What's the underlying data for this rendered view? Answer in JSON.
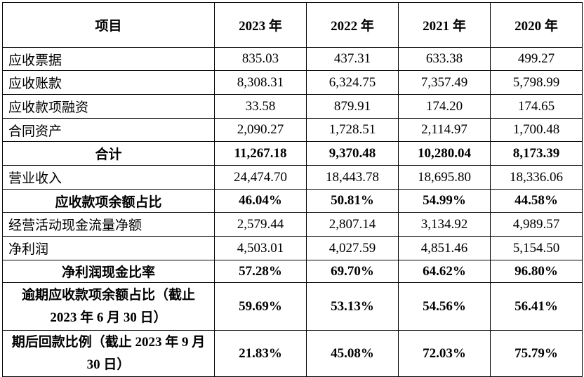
{
  "headers": [
    "项目",
    "2023 年",
    "2022 年",
    "2021 年",
    "2020 年"
  ],
  "rows": [
    {
      "label": "应收票据",
      "values": [
        "835.03",
        "437.31",
        "633.38",
        "499.27"
      ],
      "bold": false
    },
    {
      "label": "应收账款",
      "values": [
        "8,308.31",
        "6,324.75",
        "7,357.49",
        "5,798.99"
      ],
      "bold": false
    },
    {
      "label": "应收款项融资",
      "values": [
        "33.58",
        "879.91",
        "174.20",
        "174.65"
      ],
      "bold": false
    },
    {
      "label": "合同资产",
      "values": [
        "2,090.27",
        "1,728.51",
        "2,114.97",
        "1,700.48"
      ],
      "bold": false
    },
    {
      "label": "合计",
      "values": [
        "11,267.18",
        "9,370.48",
        "10,280.04",
        "8,173.39"
      ],
      "bold": true
    },
    {
      "label": "营业收入",
      "values": [
        "24,474.70",
        "18,443.78",
        "18,695.80",
        "18,336.06"
      ],
      "bold": false
    },
    {
      "label": "应收款项余额占比",
      "values": [
        "46.04%",
        "50.81%",
        "54.99%",
        "44.58%"
      ],
      "bold": true
    },
    {
      "label": "经营活动现金流量净额",
      "values": [
        "2,579.44",
        "2,807.14",
        "3,134.92",
        "4,989.57"
      ],
      "bold": false
    },
    {
      "label": "净利润",
      "values": [
        "4,503.01",
        "4,027.59",
        "4,851.46",
        "5,154.50"
      ],
      "bold": false
    },
    {
      "label": "净利润现金比率",
      "values": [
        "57.28%",
        "69.70%",
        "64.62%",
        "96.80%"
      ],
      "bold": true
    },
    {
      "label": "逾期应收款项余额占比（截止 2023 年 6 月 30 日）",
      "values": [
        "59.69%",
        "53.13%",
        "54.56%",
        "56.41%"
      ],
      "bold": true,
      "wrap": true
    },
    {
      "label": "期后回款比例（截止 2023 年 9 月 30 日）",
      "values": [
        "21.83%",
        "45.08%",
        "72.03%",
        "75.79%"
      ],
      "bold": true,
      "wrap": true
    }
  ]
}
